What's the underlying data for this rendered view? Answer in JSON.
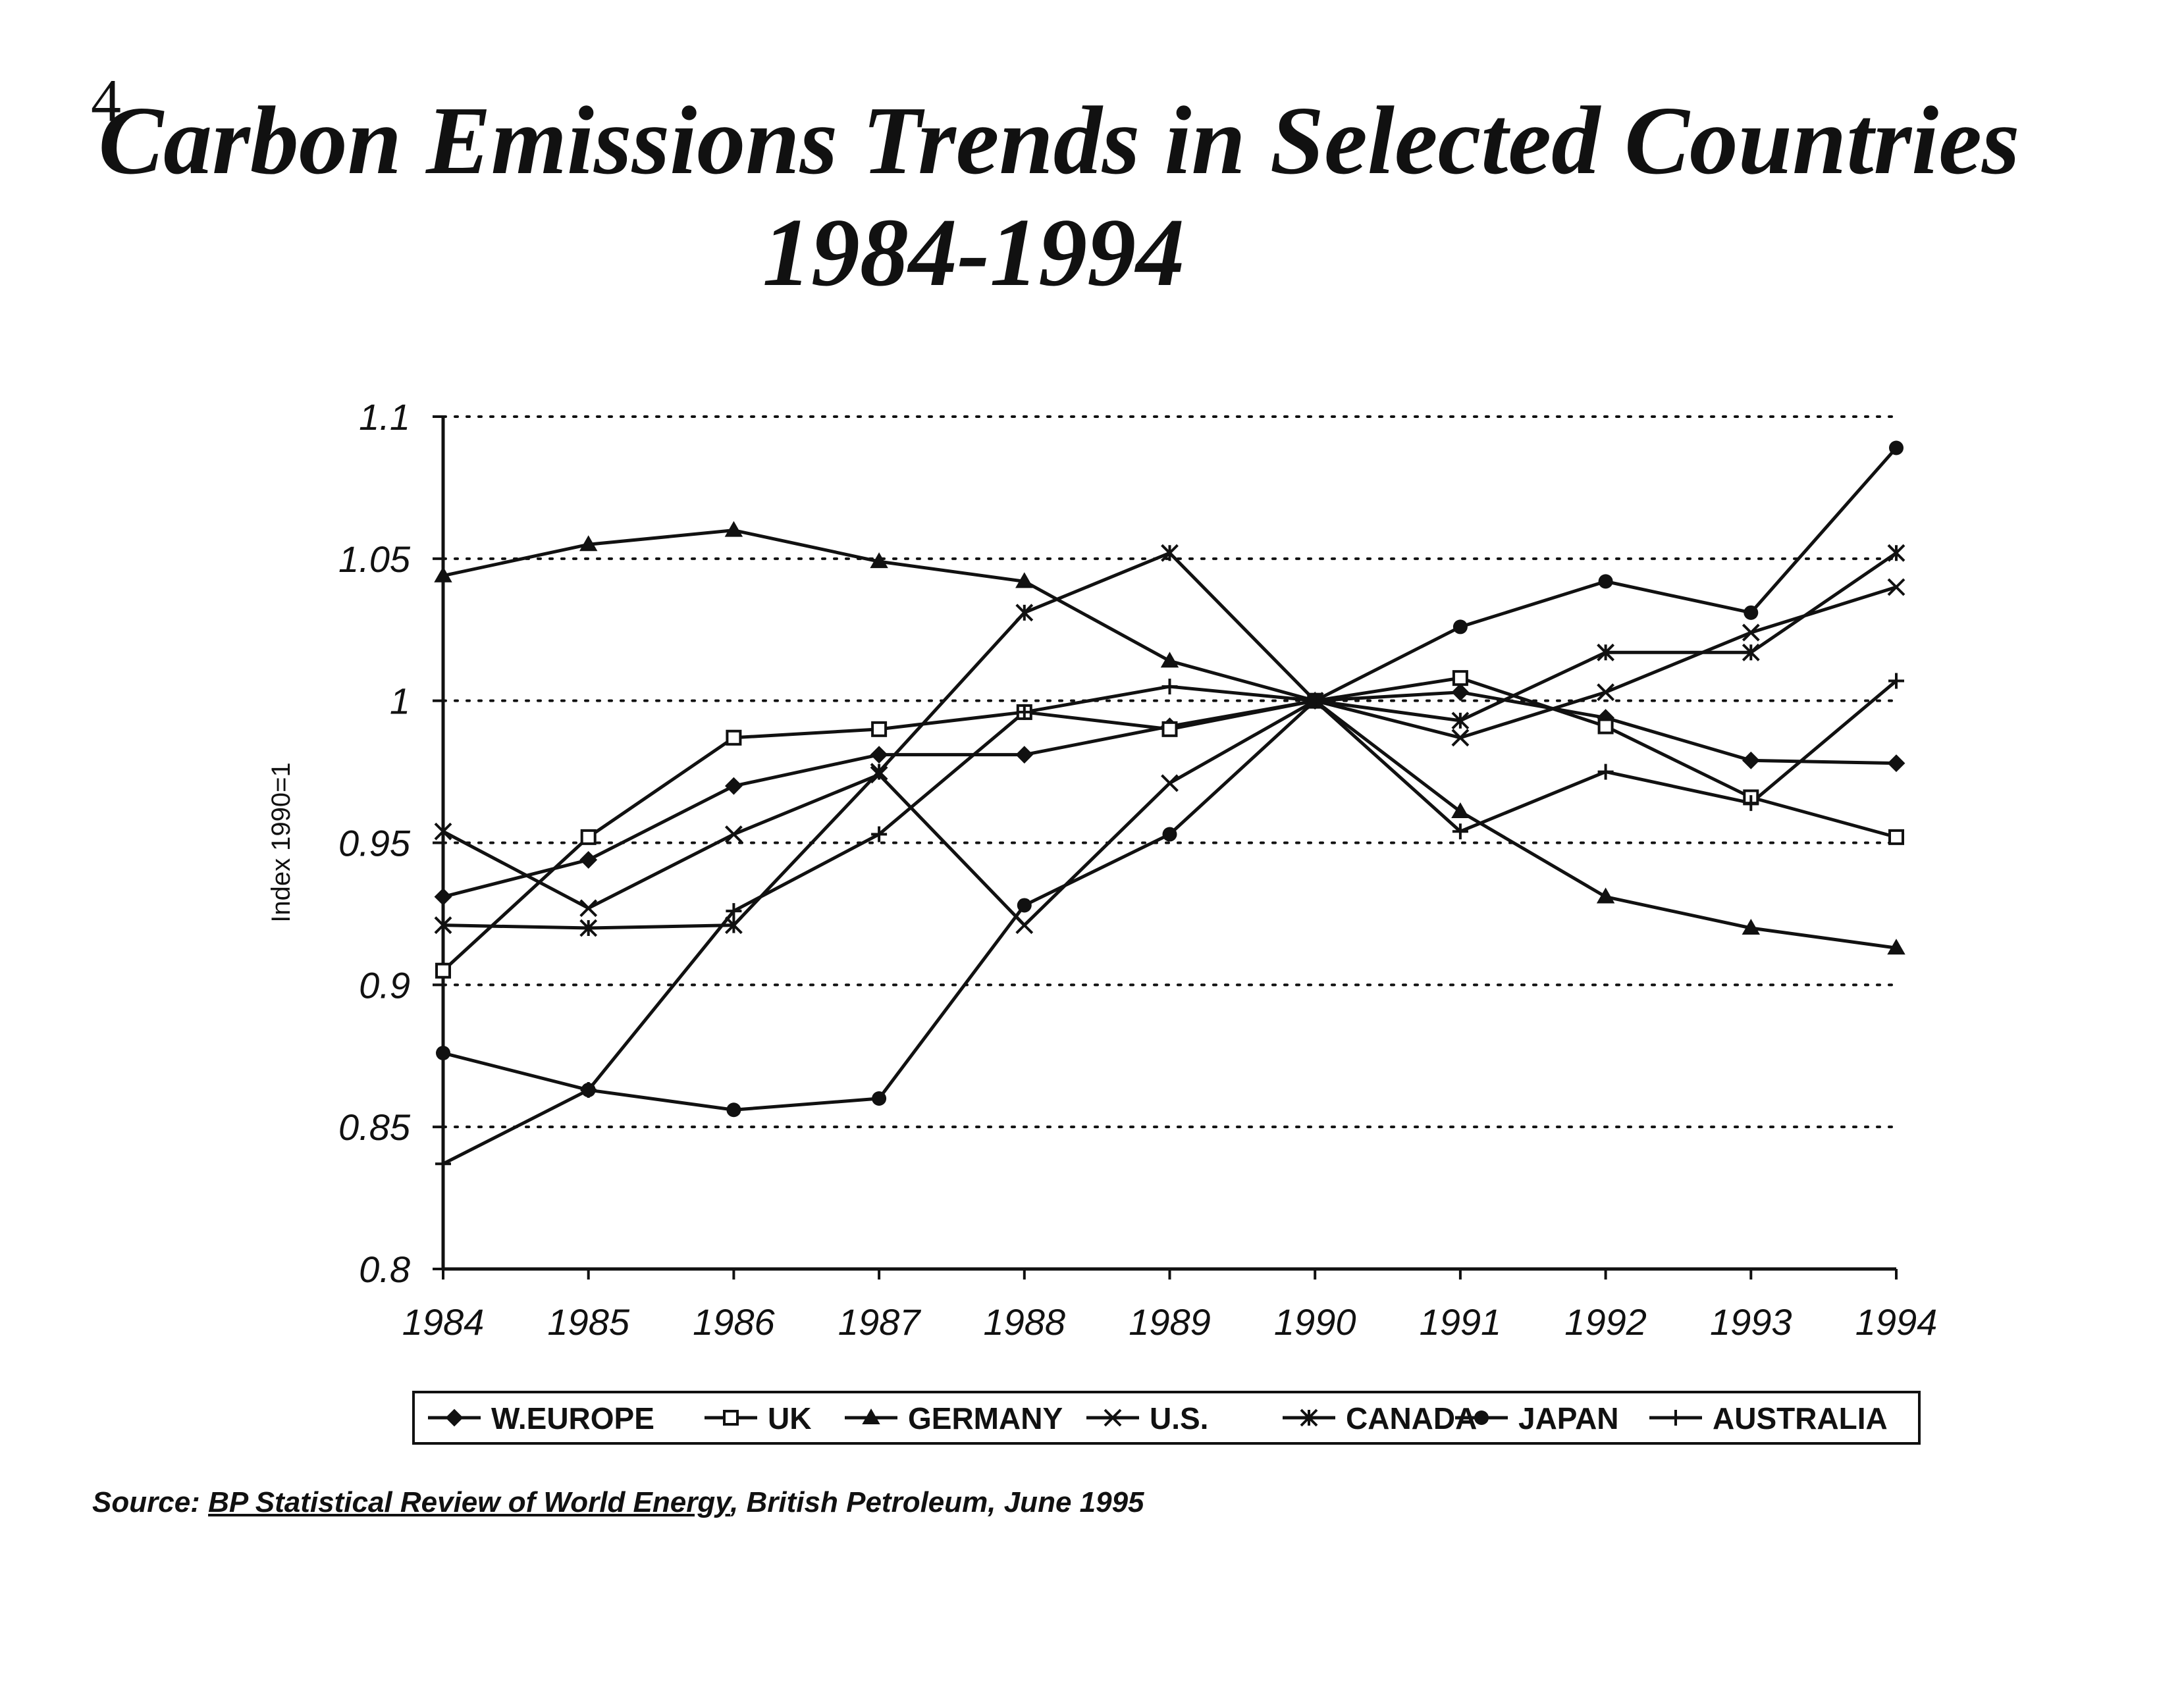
{
  "page_number": "4",
  "source": {
    "prefix": "Source:",
    "publication": "BP Statistical Review of World Energy",
    "suffix": ", British Petroleum, June 1995"
  },
  "chart_data": {
    "type": "line",
    "title": "Carbon Emissions Trends in Selected Countries",
    "subtitle": "1984-1994",
    "xlabel": "",
    "ylabel": "Index 1990=1",
    "ylim": [
      0.8,
      1.1
    ],
    "y_ticks": [
      0.8,
      0.85,
      0.9,
      0.95,
      1,
      1.05,
      1.1
    ],
    "y_tick_labels": [
      "0.8",
      "0.85",
      "0.9",
      "0.95",
      "1",
      "1.05",
      "1.1"
    ],
    "gridlines": "dotted horizontal",
    "legend_position": "bottom",
    "categories": [
      "1984",
      "1985",
      "1986",
      "1987",
      "1988",
      "1989",
      "1990",
      "1991",
      "1992",
      "1993",
      "1994"
    ],
    "series": [
      {
        "name": "W.EUROPE",
        "marker": "diamond",
        "values": [
          0.931,
          0.944,
          0.97,
          0.981,
          0.981,
          0.991,
          1.0,
          1.003,
          0.994,
          0.979,
          0.978
        ]
      },
      {
        "name": "UK",
        "marker": "square",
        "values": [
          0.905,
          0.952,
          0.987,
          0.99,
          0.996,
          0.99,
          1.0,
          1.008,
          0.991,
          0.966,
          0.952
        ]
      },
      {
        "name": "GERMANY",
        "marker": "triangle",
        "values": [
          1.044,
          1.055,
          1.06,
          1.049,
          1.042,
          1.014,
          1.0,
          0.961,
          0.931,
          0.92,
          0.913
        ]
      },
      {
        "name": "U.S.",
        "marker": "x",
        "values": [
          0.954,
          0.927,
          0.953,
          0.974,
          0.921,
          0.971,
          1.0,
          0.987,
          1.003,
          1.024,
          1.04
        ]
      },
      {
        "name": "CANADA",
        "marker": "asterisk",
        "values": [
          0.921,
          0.92,
          0.921,
          0.975,
          1.031,
          1.052,
          1.0,
          0.993,
          1.017,
          1.017,
          1.052
        ]
      },
      {
        "name": "JAPAN",
        "marker": "circle",
        "values": [
          0.876,
          0.863,
          0.856,
          0.86,
          0.928,
          0.953,
          1.0,
          1.026,
          1.042,
          1.031,
          1.089
        ]
      },
      {
        "name": "AUSTRALIA",
        "marker": "plus",
        "values": [
          0.837,
          0.863,
          0.926,
          0.953,
          0.996,
          1.005,
          1.0,
          0.954,
          0.975,
          0.964,
          1.007
        ]
      }
    ]
  }
}
